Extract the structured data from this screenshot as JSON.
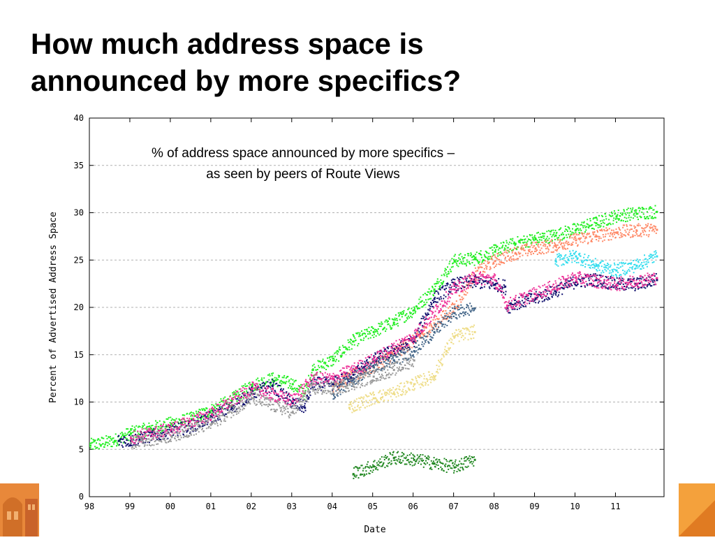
{
  "slide": {
    "title_line1": "How much address space is",
    "title_line2": "announced by more specifics?"
  },
  "annotation": {
    "line1": "% of address space announced by more specifics –",
    "line2": "as seen by peers of Route Views"
  },
  "colors": {
    "green": "#22ee22",
    "dark_green": "#228822",
    "navy": "#10106e",
    "salmon": "#ff8866",
    "magenta": "#ee3399",
    "khaki": "#eedd88",
    "cyan": "#33ddee",
    "slate": "#446688",
    "gray": "#999999",
    "grid": "#b0b0b0",
    "deco_left": "#e8883a",
    "deco_right": "#f4a13c"
  },
  "chart_data": {
    "type": "scatter",
    "xlabel": "Date",
    "ylabel": "Percent of Advertised Address Space",
    "x_ticks": [
      "98",
      "99",
      "00",
      "01",
      "02",
      "03",
      "04",
      "05",
      "06",
      "07",
      "08",
      "09",
      "10",
      "11"
    ],
    "xlim": [
      1998.0,
      2012.2
    ],
    "ylim": [
      0,
      40
    ],
    "y_ticks": [
      0,
      5,
      10,
      15,
      20,
      25,
      30,
      35,
      40
    ],
    "grid": "horizontal dashed",
    "legend": "none",
    "series": [
      {
        "color_key": "green",
        "x": [
          1998.0,
          1998.6,
          1999.0,
          1999.5,
          2000.0,
          2000.5,
          2001.0,
          2001.5,
          2002.0,
          2002.5,
          2003.0,
          2003.3,
          2003.5,
          2004.0,
          2004.5,
          2005.0,
          2005.5,
          2006.0,
          2006.5,
          2007.0,
          2007.5,
          2008.0,
          2008.5,
          2009.0,
          2009.5,
          2010.0,
          2010.5,
          2011.0,
          2011.5,
          2012.0
        ],
        "y": [
          5.5,
          6.0,
          6.8,
          7.3,
          7.8,
          8.3,
          9.2,
          10.3,
          11.8,
          12.5,
          12.0,
          11.0,
          13.5,
          14.5,
          16.5,
          17.5,
          18.5,
          19.8,
          22.0,
          25.0,
          25.2,
          26.0,
          26.8,
          27.3,
          27.7,
          28.3,
          29.0,
          29.7,
          30.0,
          30.2
        ]
      },
      {
        "color_key": "salmon",
        "x": [
          2004.0,
          2005.0,
          2006.0,
          2007.0,
          2007.5,
          2008.0,
          2008.5,
          2009.0,
          2009.5,
          2010.0,
          2010.5,
          2011.0,
          2011.5,
          2012.0
        ],
        "y": [
          11.8,
          13.8,
          16.5,
          20.0,
          23.5,
          25.0,
          25.8,
          26.3,
          26.6,
          27.2,
          27.6,
          28.0,
          28.2,
          28.3
        ]
      },
      {
        "color_key": "navy",
        "x": [
          1998.7,
          1999.0,
          1999.5,
          2000.0,
          2000.5,
          2001.0,
          2001.5,
          2002.0,
          2002.5,
          2003.0,
          2003.3,
          2003.5,
          2004.0,
          2004.5,
          2005.0,
          2005.5,
          2006.0,
          2006.5,
          2007.0,
          2007.5,
          2008.0,
          2008.25,
          2008.3,
          2008.5,
          2009.0,
          2009.5,
          2010.0,
          2010.5,
          2011.0,
          2011.5,
          2012.0
        ],
        "y": [
          6.0,
          6.0,
          6.5,
          7.0,
          7.5,
          8.5,
          9.5,
          11.0,
          11.8,
          10.0,
          9.5,
          12.0,
          12.0,
          13.0,
          14.5,
          15.5,
          16.5,
          21.0,
          22.5,
          22.8,
          22.5,
          22.3,
          20.0,
          20.5,
          21.0,
          21.8,
          22.8,
          23.0,
          22.5,
          22.5,
          23.0
        ]
      },
      {
        "color_key": "magenta",
        "x": [
          1999.0,
          2000.0,
          2001.0,
          2002.0,
          2003.0,
          2003.5,
          2004.0,
          2005.0,
          2006.0,
          2007.0,
          2007.5,
          2008.0,
          2008.3,
          2009.0,
          2010.0,
          2011.0,
          2012.0
        ],
        "y": [
          6.3,
          7.2,
          8.8,
          11.5,
          10.2,
          12.5,
          12.5,
          14.5,
          17.0,
          22.0,
          23.2,
          23.0,
          20.3,
          21.5,
          23.2,
          22.5,
          23.2
        ]
      },
      {
        "color_key": "dark_green",
        "x": [
          2004.5,
          2005.0,
          2005.5,
          2006.0,
          2006.5,
          2007.0,
          2007.5
        ],
        "y": [
          2.5,
          3.3,
          4.2,
          4.0,
          3.6,
          3.2,
          4.0
        ]
      },
      {
        "color_key": "khaki",
        "x": [
          2004.4,
          2005.0,
          2005.5,
          2006.0,
          2006.5,
          2006.8,
          2007.0,
          2007.5
        ],
        "y": [
          9.5,
          10.5,
          11.0,
          12.0,
          12.8,
          15.5,
          17.0,
          17.5
        ]
      },
      {
        "color_key": "cyan",
        "x": [
          2009.5,
          2010.0,
          2010.5,
          2011.0,
          2011.5,
          2012.0
        ],
        "y": [
          25.0,
          25.5,
          24.5,
          24.0,
          24.5,
          25.5
        ]
      },
      {
        "color_key": "slate",
        "x": [
          2004.0,
          2004.5,
          2005.0,
          2005.5,
          2006.0,
          2006.5,
          2007.0,
          2007.5
        ],
        "y": [
          11.0,
          12.5,
          13.8,
          14.5,
          15.5,
          17.5,
          19.5,
          20.0
        ]
      },
      {
        "color_key": "gray",
        "x": [
          1999.0,
          2000.0,
          2001.0,
          2002.0,
          2003.0,
          2003.5,
          2004.0,
          2004.5,
          2005.0,
          2005.5,
          2006.0
        ],
        "y": [
          5.8,
          6.5,
          7.8,
          10.5,
          9.0,
          11.5,
          11.5,
          12.0,
          12.8,
          13.5,
          14.5
        ]
      }
    ]
  }
}
